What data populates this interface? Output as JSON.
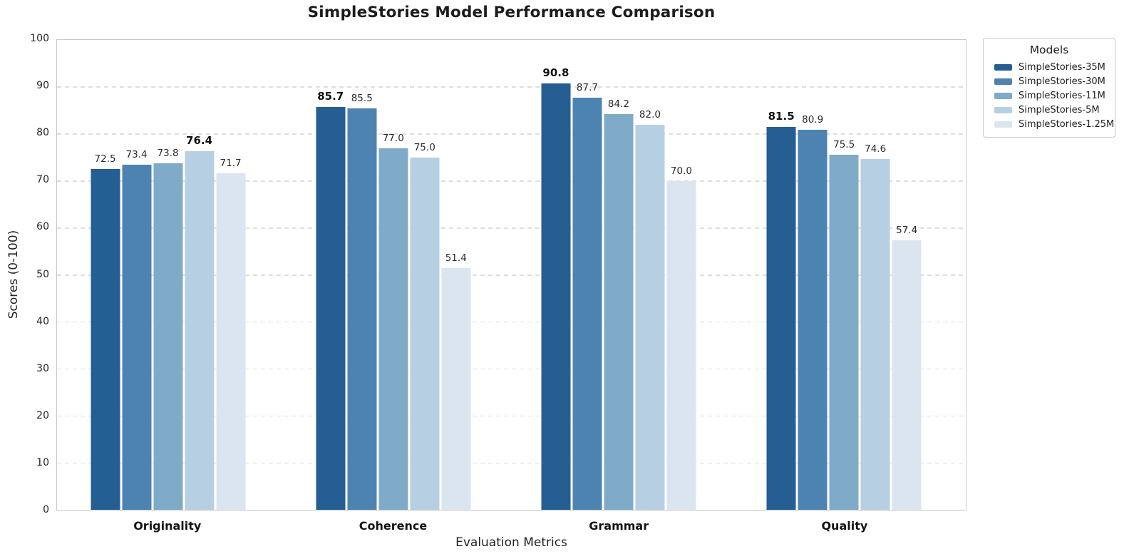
{
  "chart_data": {
    "type": "bar",
    "title": "SimpleStories Model Performance Comparison",
    "xlabel": "Evaluation Metrics",
    "ylabel": "Scores (0-100)",
    "categories": [
      "Originality",
      "Coherence",
      "Grammar",
      "Quality"
    ],
    "series": [
      {
        "name": "SimpleStories-35M",
        "color": "#255e92",
        "values": [
          72.5,
          85.7,
          90.8,
          81.5
        ]
      },
      {
        "name": "SimpleStories-30M",
        "color": "#4d83b0",
        "values": [
          73.4,
          85.5,
          87.7,
          80.9
        ]
      },
      {
        "name": "SimpleStories-11M",
        "color": "#7fabc9",
        "values": [
          73.8,
          77.0,
          84.2,
          75.5
        ]
      },
      {
        "name": "SimpleStories-5M",
        "color": "#b7cfe2",
        "values": [
          76.4,
          75.0,
          82.0,
          74.6
        ]
      },
      {
        "name": "SimpleStories-1.25M",
        "color": "#dbe5f0",
        "values": [
          71.7,
          51.4,
          70.0,
          57.4
        ]
      }
    ],
    "legend": {
      "title": "Models",
      "position": "upper-right-outside"
    },
    "ylim": [
      0,
      100
    ],
    "yticks": [
      0,
      10,
      20,
      30,
      40,
      50,
      60,
      70,
      80,
      90,
      100
    ],
    "grid": "horizontal-dashed",
    "value_labels": "one-decimal, max per category shown bold"
  }
}
